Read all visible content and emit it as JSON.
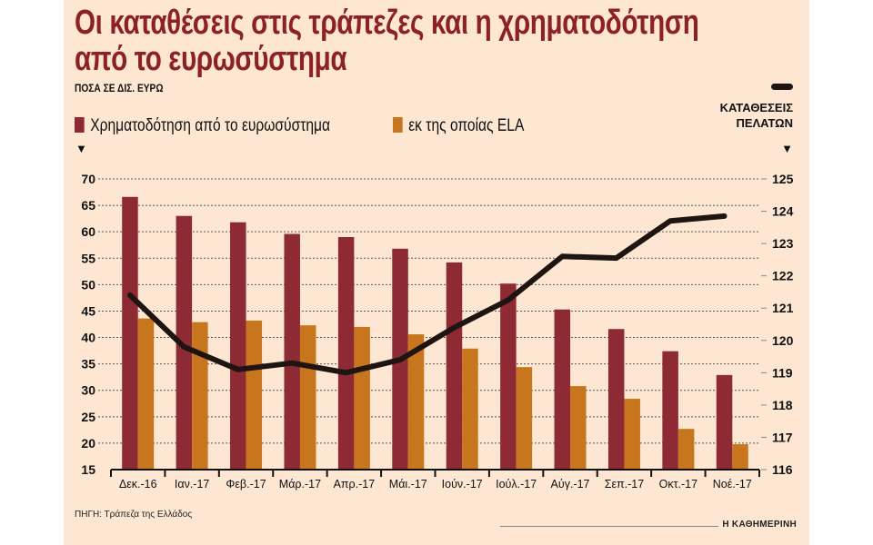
{
  "title_line1": "Οι καταθέσεις στις τράπεζες και η χρηματοδότηση",
  "title_line2": "από το ευρωσύστημα",
  "subtitle": "ΠΟΣΑ ΣΕ ΔΙΣ. ΕΥΡΩ",
  "right_axis_label_line1": "ΚΑΤΑΘΕΣΕΙΣ",
  "right_axis_label_line2": "ΠΕΛΑΤΩΝ",
  "source": "ΠΗΓΗ: Τράπεζα της Ελλάδος",
  "brand": "Η ΚΑΘΗΜΕΡΙΝΗ",
  "colors": {
    "funding": "#8e2a33",
    "ela": "#c8761e",
    "deposits": "#1e1512",
    "background": "#fde6d2",
    "title": "#8c2228"
  },
  "chart_data": {
    "type": "bar",
    "title": "Οι καταθέσεις στις τράπεζες και η χρηματοδότηση από το ευρωσύστημα",
    "subtitle": "ΠΟΣΑ ΣΕ ΔΙΣ. ΕΥΡΩ",
    "categories": [
      "Δεκ.-16",
      "Ιαν.-17",
      "Φεβ.-17",
      "Μάρ.-17",
      "Απρ.-17",
      "Μάι.-17",
      "Ιούν.-17",
      "Ιούλ.-17",
      "Αύγ.-17",
      "Σεπ.-17",
      "Οκτ.-17",
      "Νοέ.-17"
    ],
    "ylim": [
      15,
      70
    ],
    "yticks": [
      15,
      20,
      25,
      30,
      35,
      40,
      45,
      50,
      55,
      60,
      65,
      70
    ],
    "y2lim": [
      116,
      125
    ],
    "y2ticks": [
      116,
      117,
      118,
      119,
      120,
      121,
      122,
      123,
      124,
      125
    ],
    "y2label": "ΚΑΤΑΘΕΣΕΙΣ ΠΕΛΑΤΩΝ",
    "grid": true,
    "legend": "top-left",
    "series": [
      {
        "name": "Χρηματοδότηση από το ευρωσύστημα",
        "type": "bar",
        "axis": "left",
        "values": [
          66.6,
          63.0,
          61.8,
          59.6,
          59.0,
          56.8,
          54.2,
          50.2,
          45.3,
          41.6,
          37.4,
          32.9
        ]
      },
      {
        "name": "εκ της οποίας ELA",
        "type": "bar",
        "axis": "left",
        "values": [
          43.6,
          42.9,
          43.2,
          42.3,
          42.0,
          40.6,
          37.9,
          34.4,
          30.8,
          28.4,
          22.7,
          19.8
        ]
      },
      {
        "name": "ΚΑΤΑΘΕΣΕΙΣ ΠΕΛΑΤΩΝ",
        "type": "line",
        "axis": "right",
        "values": [
          121.4,
          119.8,
          119.1,
          119.3,
          119.0,
          119.4,
          120.4,
          121.25,
          122.6,
          122.55,
          123.7,
          123.85
        ]
      }
    ]
  }
}
